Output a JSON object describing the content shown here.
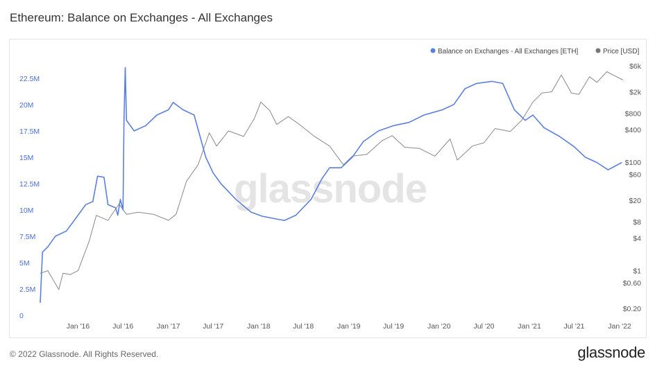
{
  "header": {
    "title": "Ethereum: Balance on Exchanges - All Exchanges"
  },
  "footer": {
    "copyright": "© 2022 Glassnode. All Rights Reserved.",
    "brand": "glassnode"
  },
  "watermark": "glassnode",
  "chart_data": {
    "type": "line",
    "title": "Ethereum: Balance on Exchanges - All Exchanges",
    "legend_position": "top-right",
    "grid": false,
    "x_ticks": [
      "Jan '16",
      "Jul '16",
      "Jan '17",
      "Jul '17",
      "Jan '18",
      "Jul '18",
      "Jan '19",
      "Jul '19",
      "Jan '20",
      "Jul '20",
      "Jan '21",
      "Jul '21",
      "Jan '22"
    ],
    "x_range": [
      "2015-08-01",
      "2022-01-15"
    ],
    "y_left": {
      "ticks": [
        "0",
        "2.5M",
        "5M",
        "7.5M",
        "10M",
        "12.5M",
        "15M",
        "17.5M",
        "20M",
        "22.5M"
      ],
      "range": [
        0,
        24000000
      ]
    },
    "y_right": {
      "scale": "log",
      "ticks": [
        "$0.20",
        "$0.60",
        "$1",
        "$4",
        "$8",
        "$20",
        "$60",
        "$100",
        "$400",
        "$800",
        "$2k",
        "$6k"
      ],
      "tick_values": [
        0.2,
        0.6,
        1,
        4,
        8,
        20,
        60,
        100,
        400,
        800,
        2000,
        6000
      ],
      "range": [
        0.15,
        7000
      ]
    },
    "series": [
      {
        "name": "Balance on Exchanges - All Exchanges [ETH]",
        "axis": "left",
        "color": "#5b7fdc",
        "points": [
          [
            "2015-08-01",
            1200000
          ],
          [
            "2015-08-10",
            6000000
          ],
          [
            "2015-09-01",
            6500000
          ],
          [
            "2015-10-01",
            7500000
          ],
          [
            "2015-11-15",
            8000000
          ],
          [
            "2016-01-01",
            9500000
          ],
          [
            "2016-02-01",
            10500000
          ],
          [
            "2016-03-01",
            10800000
          ],
          [
            "2016-03-20",
            13200000
          ],
          [
            "2016-04-15",
            13100000
          ],
          [
            "2016-05-01",
            10500000
          ],
          [
            "2016-06-01",
            10200000
          ],
          [
            "2016-06-10",
            9500000
          ],
          [
            "2016-06-20",
            11000000
          ],
          [
            "2016-07-01",
            10000000
          ],
          [
            "2016-07-05",
            18500000
          ],
          [
            "2016-07-10",
            23500000
          ],
          [
            "2016-07-15",
            18500000
          ],
          [
            "2016-08-15",
            17500000
          ],
          [
            "2016-10-01",
            18000000
          ],
          [
            "2016-11-15",
            19000000
          ],
          [
            "2017-01-01",
            19500000
          ],
          [
            "2017-01-20",
            20200000
          ],
          [
            "2017-03-01",
            19500000
          ],
          [
            "2017-04-15",
            19000000
          ],
          [
            "2017-06-01",
            15000000
          ],
          [
            "2017-07-01",
            13500000
          ],
          [
            "2017-08-01",
            12500000
          ],
          [
            "2017-10-01",
            11000000
          ],
          [
            "2017-12-01",
            9800000
          ],
          [
            "2018-01-15",
            9400000
          ],
          [
            "2018-03-01",
            9200000
          ],
          [
            "2018-04-15",
            9000000
          ],
          [
            "2018-06-01",
            9500000
          ],
          [
            "2018-08-01",
            11000000
          ],
          [
            "2018-09-15",
            13000000
          ],
          [
            "2018-10-15",
            14000000
          ],
          [
            "2018-12-01",
            14000000
          ],
          [
            "2019-01-15",
            15000000
          ],
          [
            "2019-03-01",
            16500000
          ],
          [
            "2019-05-01",
            17500000
          ],
          [
            "2019-07-01",
            18000000
          ],
          [
            "2019-09-01",
            18300000
          ],
          [
            "2019-11-01",
            19000000
          ],
          [
            "2020-01-15",
            19500000
          ],
          [
            "2020-03-01",
            20000000
          ],
          [
            "2020-04-15",
            21500000
          ],
          [
            "2020-06-01",
            22000000
          ],
          [
            "2020-08-01",
            22200000
          ],
          [
            "2020-09-15",
            22000000
          ],
          [
            "2020-11-01",
            19500000
          ],
          [
            "2020-12-15",
            18500000
          ],
          [
            "2021-01-15",
            19000000
          ],
          [
            "2021-03-01",
            17800000
          ],
          [
            "2021-05-01",
            17000000
          ],
          [
            "2021-07-01",
            16000000
          ],
          [
            "2021-08-15",
            15000000
          ],
          [
            "2021-10-01",
            14500000
          ],
          [
            "2021-11-15",
            13800000
          ],
          [
            "2022-01-10",
            14500000
          ]
        ]
      },
      {
        "name": "Price [USD]",
        "axis": "right",
        "color": "#888888",
        "points": [
          [
            "2015-08-01",
            0.9
          ],
          [
            "2015-09-01",
            1.0
          ],
          [
            "2015-10-15",
            0.45
          ],
          [
            "2015-11-01",
            0.9
          ],
          [
            "2015-12-01",
            0.85
          ],
          [
            "2016-01-01",
            1.0
          ],
          [
            "2016-02-15",
            3.5
          ],
          [
            "2016-03-15",
            10.5
          ],
          [
            "2016-05-01",
            8.5
          ],
          [
            "2016-06-15",
            17
          ],
          [
            "2016-07-15",
            11
          ],
          [
            "2016-09-01",
            12
          ],
          [
            "2016-11-01",
            11
          ],
          [
            "2017-01-01",
            8.5
          ],
          [
            "2017-02-01",
            11
          ],
          [
            "2017-03-15",
            45
          ],
          [
            "2017-05-01",
            90
          ],
          [
            "2017-06-15",
            350
          ],
          [
            "2017-07-15",
            200
          ],
          [
            "2017-09-01",
            380
          ],
          [
            "2017-11-01",
            300
          ],
          [
            "2017-12-15",
            650
          ],
          [
            "2018-01-10",
            1300
          ],
          [
            "2018-02-15",
            900
          ],
          [
            "2018-03-15",
            500
          ],
          [
            "2018-05-01",
            700
          ],
          [
            "2018-06-15",
            500
          ],
          [
            "2018-08-15",
            300
          ],
          [
            "2018-10-15",
            200
          ],
          [
            "2018-12-10",
            90
          ],
          [
            "2019-01-15",
            130
          ],
          [
            "2019-03-15",
            140
          ],
          [
            "2019-05-15",
            250
          ],
          [
            "2019-06-25",
            310
          ],
          [
            "2019-08-15",
            190
          ],
          [
            "2019-10-15",
            180
          ],
          [
            "2019-12-15",
            130
          ],
          [
            "2020-02-15",
            270
          ],
          [
            "2020-03-15",
            110
          ],
          [
            "2020-05-15",
            200
          ],
          [
            "2020-07-01",
            230
          ],
          [
            "2020-08-15",
            420
          ],
          [
            "2020-10-15",
            370
          ],
          [
            "2020-12-01",
            600
          ],
          [
            "2021-01-15",
            1300
          ],
          [
            "2021-02-20",
            1900
          ],
          [
            "2021-04-01",
            2000
          ],
          [
            "2021-05-10",
            4100
          ],
          [
            "2021-06-20",
            1900
          ],
          [
            "2021-07-20",
            1800
          ],
          [
            "2021-09-01",
            3800
          ],
          [
            "2021-10-01",
            3000
          ],
          [
            "2021-11-10",
            4700
          ],
          [
            "2021-12-15",
            3900
          ],
          [
            "2022-01-15",
            3300
          ]
        ]
      }
    ]
  }
}
